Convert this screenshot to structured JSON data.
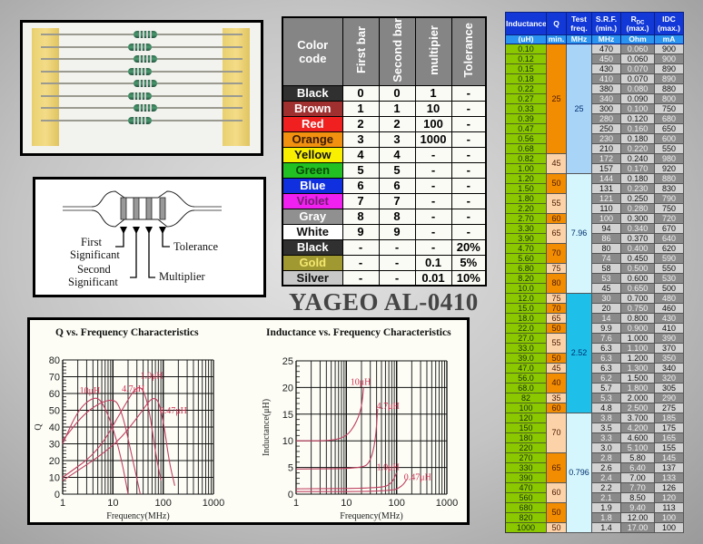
{
  "title": "YAGEO AL-0410",
  "diagram": {
    "labels": {
      "first": "First",
      "first2": "Significant",
      "second": "Second",
      "second2": "Significant",
      "multiplier": "Multiplier",
      "tolerance": "Tolerance"
    }
  },
  "color_table": {
    "headers": [
      "Color code",
      "First bar",
      "Second bar",
      "multipier",
      "Tolerance"
    ],
    "rows": [
      {
        "name": "Black",
        "bg": "#303030",
        "fg": "#ffffff",
        "v": [
          "0",
          "0",
          "1",
          "-"
        ]
      },
      {
        "name": "Brown",
        "bg": "#a03030",
        "fg": "#ffffff",
        "v": [
          "1",
          "1",
          "10",
          "-"
        ]
      },
      {
        "name": "Red",
        "bg": "#f02020",
        "fg": "#ffffff",
        "v": [
          "2",
          "2",
          "100",
          "-"
        ]
      },
      {
        "name": "Orange",
        "bg": "#f29010",
        "fg": "#3a1a00",
        "v": [
          "3",
          "3",
          "1000",
          "-"
        ]
      },
      {
        "name": "Yellow",
        "bg": "#f8f000",
        "fg": "#111111",
        "v": [
          "4",
          "4",
          "-",
          "-"
        ]
      },
      {
        "name": "Green",
        "bg": "#22c022",
        "fg": "#0a4a0a",
        "v": [
          "5",
          "5",
          "-",
          "-"
        ]
      },
      {
        "name": "Blue",
        "bg": "#1030e0",
        "fg": "#ffffff",
        "v": [
          "6",
          "6",
          "-",
          "-"
        ]
      },
      {
        "name": "Violet",
        "bg": "#f020f0",
        "fg": "#702070",
        "v": [
          "7",
          "7",
          "-",
          "-"
        ]
      },
      {
        "name": "Gray",
        "bg": "#909090",
        "fg": "#ffffff",
        "v": [
          "8",
          "8",
          "-",
          "-"
        ]
      },
      {
        "name": "White",
        "bg": "#ffffff",
        "fg": "#111111",
        "v": [
          "9",
          "9",
          "-",
          "-"
        ]
      },
      {
        "name": "Black",
        "bg": "#303030",
        "fg": "#ffffff",
        "v": [
          "-",
          "-",
          "-",
          "20%"
        ]
      },
      {
        "name": "Gold",
        "bg": "#a09830",
        "fg": "#f4e870",
        "v": [
          "-",
          "-",
          "0.1",
          "5%"
        ]
      },
      {
        "name": "Silver",
        "bg": "#c8c8c8",
        "fg": "#111111",
        "v": [
          "-",
          "-",
          "0.01",
          "10%"
        ]
      }
    ]
  },
  "spec_table": {
    "headers": [
      "Inductance",
      "Q",
      "Test freq.",
      "S.R.F. (min.)",
      "R",
      "IDC (max.)"
    ],
    "rdc_sub": "DC",
    "rdc_tail": "(max.)",
    "units": [
      "(uH)",
      "min.",
      "MHz",
      "MHz",
      "Ohm",
      "mA"
    ],
    "rows": [
      [
        "0.10",
        "470",
        "0.060",
        "900"
      ],
      [
        "0.12",
        "450",
        "0.060",
        "900"
      ],
      [
        "0.15",
        "430",
        "0.070",
        "890"
      ],
      [
        "0.18",
        "410",
        "0.070",
        "890"
      ],
      [
        "0.22",
        "380",
        "0.080",
        "880"
      ],
      [
        "0.27",
        "340",
        "0.090",
        "800"
      ],
      [
        "0.33",
        "300",
        "0.100",
        "750"
      ],
      [
        "0.39",
        "280",
        "0.120",
        "680"
      ],
      [
        "0.47",
        "250",
        "0.160",
        "650"
      ],
      [
        "0.56",
        "230",
        "0.180",
        "600"
      ],
      [
        "0.68",
        "210",
        "0.220",
        "550"
      ],
      [
        "0.82",
        "172",
        "0.240",
        "980"
      ],
      [
        "1.00",
        "157",
        "0.170",
        "920"
      ],
      [
        "1.20",
        "144",
        "0.180",
        "880"
      ],
      [
        "1.50",
        "131",
        "0.230",
        "830"
      ],
      [
        "1.80",
        "121",
        "0.250",
        "790"
      ],
      [
        "2.20",
        "110",
        "0.280",
        "750"
      ],
      [
        "2.70",
        "100",
        "0.300",
        "720"
      ],
      [
        "3.30",
        "94",
        "0.340",
        "670"
      ],
      [
        "3.90",
        "86",
        "0.370",
        "640"
      ],
      [
        "4.70",
        "80",
        "0.400",
        "620"
      ],
      [
        "5.60",
        "74",
        "0.450",
        "590"
      ],
      [
        "6.80",
        "58",
        "0.500",
        "550"
      ],
      [
        "8.20",
        "53",
        "0.600",
        "530"
      ],
      [
        "10.0",
        "45",
        "0.650",
        "500"
      ],
      [
        "12.0",
        "30",
        "0.700",
        "480"
      ],
      [
        "15.0",
        "20",
        "0.750",
        "460"
      ],
      [
        "18.0",
        "14",
        "0.800",
        "430"
      ],
      [
        "22.0",
        "9.9",
        "0.900",
        "410"
      ],
      [
        "27.0",
        "7.6",
        "1.000",
        "390"
      ],
      [
        "33.0",
        "6.3",
        "1.100",
        "370"
      ],
      [
        "39.0",
        "6.3",
        "1.200",
        "350"
      ],
      [
        "47.0",
        "6.3",
        "1.300",
        "340"
      ],
      [
        "56.0",
        "6.2",
        "1.500",
        "320"
      ],
      [
        "68.0",
        "5.7",
        "1.800",
        "305"
      ],
      [
        "82",
        "5.3",
        "2.000",
        "290"
      ],
      [
        "100",
        "4.8",
        "2.500",
        "275"
      ],
      [
        "120",
        "3.8",
        "3.700",
        "185"
      ],
      [
        "150",
        "3.5",
        "4.200",
        "175"
      ],
      [
        "180",
        "3.3",
        "4.600",
        "165"
      ],
      [
        "220",
        "3.0",
        "5.100",
        "155"
      ],
      [
        "270",
        "2.8",
        "5.80",
        "145"
      ],
      [
        "330",
        "2.6",
        "6.40",
        "137"
      ],
      [
        "390",
        "2.4",
        "7.00",
        "133"
      ],
      [
        "470",
        "2.2",
        "7.70",
        "126"
      ],
      [
        "560",
        "2.1",
        "8.50",
        "120"
      ],
      [
        "680",
        "1.9",
        "9.40",
        "113"
      ],
      [
        "820",
        "1.8",
        "12.00",
        "100"
      ],
      [
        "1000",
        "1.4",
        "17.00",
        "100"
      ]
    ],
    "q_groups": [
      [
        "25",
        11,
        "o"
      ],
      [
        "45",
        2,
        "p"
      ],
      [
        "50",
        2,
        "o"
      ],
      [
        "55",
        2,
        "p"
      ],
      [
        "60",
        1,
        "o"
      ],
      [
        "65",
        2,
        "p"
      ],
      [
        "70",
        2,
        "o"
      ],
      [
        "75",
        1,
        "p"
      ],
      [
        "80",
        2,
        "o"
      ],
      [
        "75",
        1,
        "p"
      ],
      [
        "70",
        1,
        "o"
      ],
      [
        "65",
        1,
        "p"
      ],
      [
        "50",
        1,
        "o"
      ],
      [
        "55",
        2,
        "p"
      ],
      [
        "50",
        1,
        "o"
      ],
      [
        "45",
        1,
        "p"
      ],
      [
        "40",
        2,
        "o"
      ],
      [
        "35",
        1,
        "p"
      ],
      [
        "60",
        1,
        "o"
      ],
      [
        "70",
        4,
        "p"
      ],
      [
        "65",
        3,
        "o"
      ],
      [
        "60",
        2,
        "p"
      ],
      [
        "50",
        2,
        "o"
      ],
      [
        "50",
        1,
        "p"
      ]
    ],
    "freq_groups": [
      [
        "25",
        13
      ],
      [
        "7.96",
        12
      ],
      [
        "2.52",
        12
      ],
      [
        "0.796",
        12
      ]
    ]
  },
  "chart_data": [
    {
      "type": "line",
      "title": "Q vs. Frequency Characteristics",
      "xlabel": "Frequency(MHz)",
      "ylabel": "Q",
      "xscale": "log",
      "xlim": [
        1,
        1000
      ],
      "ylim": [
        0,
        80
      ],
      "xticks": [
        "1",
        "10",
        "100",
        "1000"
      ],
      "yticks": [
        "0",
        "10",
        "20",
        "30",
        "40",
        "50",
        "60",
        "70",
        "80"
      ],
      "grid": true,
      "series": [
        {
          "name": "10μH",
          "points": [
            [
              1,
              30
            ],
            [
              2,
              50
            ],
            [
              4,
              58
            ],
            [
              6,
              56
            ],
            [
              10,
              40
            ],
            [
              15,
              20
            ],
            [
              20,
              0
            ]
          ]
        },
        {
          "name": "4.7μH",
          "points": [
            [
              1,
              32
            ],
            [
              3,
              50
            ],
            [
              10,
              58
            ],
            [
              15,
              50
            ],
            [
              25,
              20
            ],
            [
              35,
              0
            ]
          ]
        },
        {
          "name": "1.0μH",
          "points": [
            [
              1,
              10
            ],
            [
              5,
              25
            ],
            [
              15,
              50
            ],
            [
              33,
              67
            ],
            [
              50,
              55
            ],
            [
              70,
              25
            ],
            [
              90,
              8
            ]
          ]
        },
        {
          "name": "0.47μH",
          "points": [
            [
              1,
              8
            ],
            [
              10,
              28
            ],
            [
              30,
              45
            ],
            [
              70,
              61
            ],
            [
              100,
              45
            ],
            [
              130,
              20
            ],
            [
              170,
              5
            ]
          ]
        }
      ]
    },
    {
      "type": "line",
      "title": "Inductance vs. Frequency Characteristics",
      "xlabel": "Frequency(MHz)",
      "ylabel": "Inductance(μH)",
      "xscale": "log",
      "xlim": [
        1,
        1000
      ],
      "ylim": [
        0,
        25
      ],
      "xticks": [
        "1",
        "10",
        "100",
        "1000"
      ],
      "yticks": [
        "0",
        "5",
        "10",
        "15",
        "20",
        "25"
      ],
      "grid": true,
      "series": [
        {
          "name": "10μH",
          "points": [
            [
              1,
              10
            ],
            [
              5,
              10
            ],
            [
              10,
              10.8
            ],
            [
              15,
              13
            ],
            [
              20,
              16
            ],
            [
              22,
              20
            ]
          ]
        },
        {
          "name": "4.7μH",
          "points": [
            [
              1,
              4.7
            ],
            [
              20,
              4.8
            ],
            [
              30,
              6
            ],
            [
              38,
              10
            ],
            [
              42,
              16
            ]
          ]
        },
        {
          "name": "1.0μH",
          "points": [
            [
              1,
              1
            ],
            [
              50,
              1.1
            ],
            [
              80,
              2
            ],
            [
              100,
              4
            ]
          ]
        },
        {
          "name": "0.47μH",
          "points": [
            [
              1,
              0.47
            ],
            [
              80,
              0.5
            ],
            [
              130,
              1.5
            ],
            [
              160,
              2.8
            ]
          ]
        }
      ]
    }
  ]
}
